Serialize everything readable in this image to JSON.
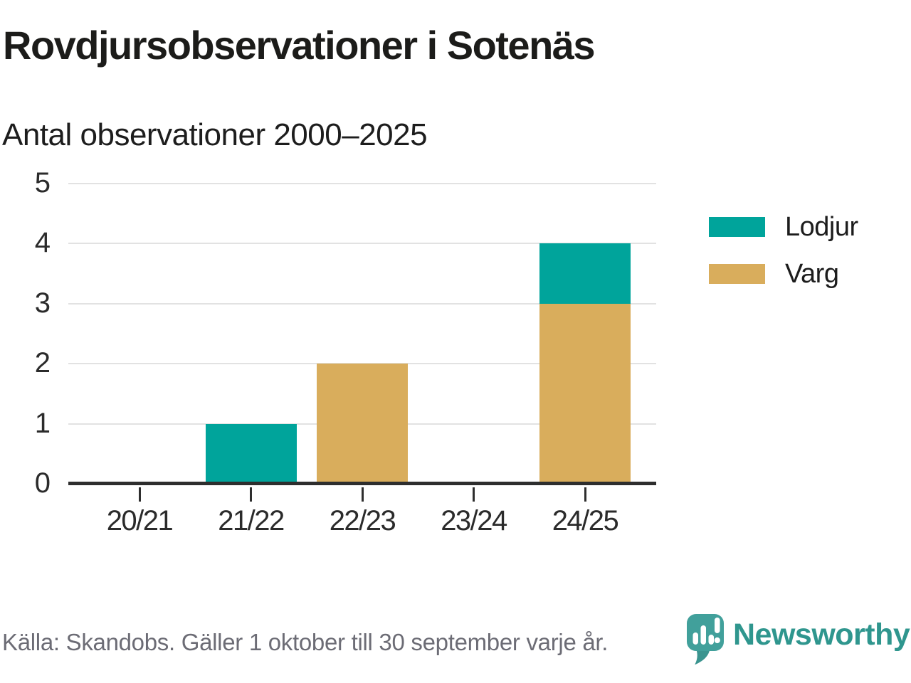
{
  "header": {
    "title": "Rovdjursobservationer i Sotenäs",
    "subtitle": "Antal observationer 2000–2025"
  },
  "chart_data": {
    "type": "bar",
    "stacked": true,
    "title": "Rovdjursobservationer i Sotenäs",
    "subtitle": "Antal observationer 2000–2025",
    "categories": [
      "20/21",
      "21/22",
      "22/23",
      "23/24",
      "24/25"
    ],
    "series": [
      {
        "name": "Lodjur",
        "color": "#00a49b",
        "values": [
          0,
          1,
          0,
          0,
          1
        ]
      },
      {
        "name": "Varg",
        "color": "#d9ad5c",
        "values": [
          0,
          0,
          2,
          0,
          3
        ]
      }
    ],
    "stack_order_bottom_to_top": [
      "Varg",
      "Lodjur"
    ],
    "xlabel": "",
    "ylabel": "",
    "ylim": [
      0,
      5
    ],
    "yticks": [
      0,
      1,
      2,
      3,
      4,
      5
    ],
    "grid": true,
    "legend_position": "right"
  },
  "footer": {
    "source": "Källa: Skandobs. Gäller 1 oktober till 30 september varje år.",
    "brand": "Newsworthy"
  },
  "colors": {
    "series_lodjur": "#00a49b",
    "series_varg": "#d9ad5c",
    "grid_line": "#e2e2e2",
    "axis_line": "#2e2e2e",
    "text_dark": "#1c1c1a",
    "text_muted": "#6c6c75",
    "brand_teal": "#2f968e",
    "logo_fill": "#41a09b",
    "logo_tail_fill": "#3a948f"
  }
}
